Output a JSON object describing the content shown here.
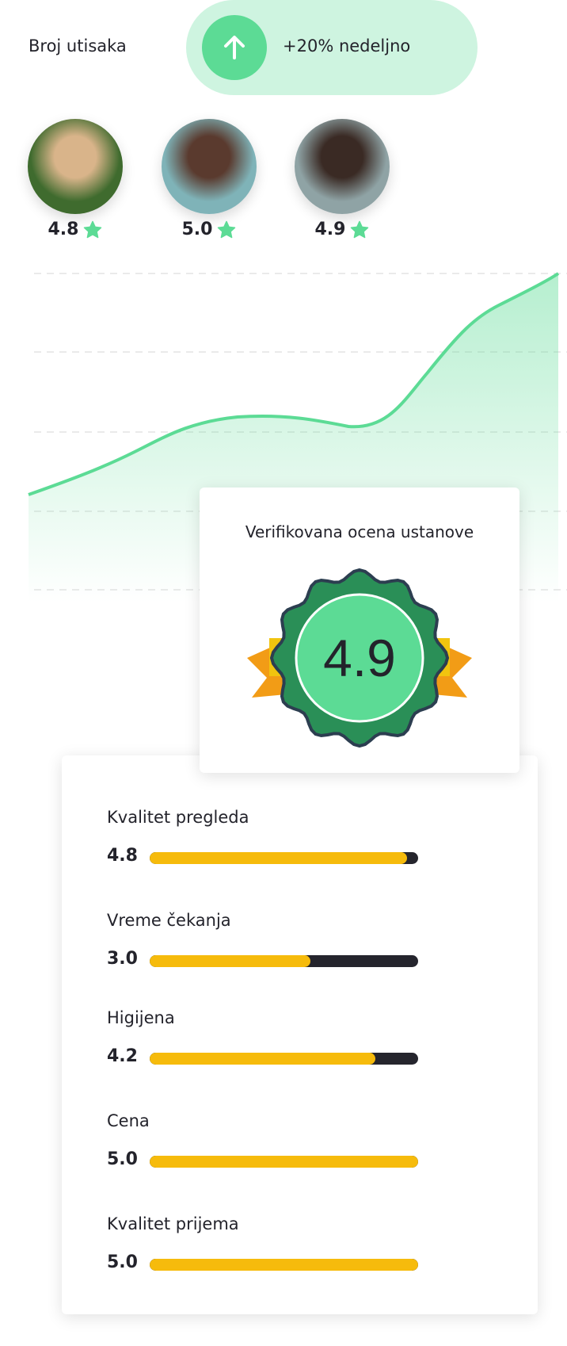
{
  "header": {
    "label": "Broj utisaka",
    "trend_text": "+20% nedeljno",
    "trend_icon": "arrow-up-icon"
  },
  "reviewers": [
    {
      "rating": "4.8",
      "icon": "star-icon",
      "photo_colors": [
        "#3f6b2e",
        "#d9b48a"
      ]
    },
    {
      "rating": "5.0",
      "icon": "star-icon",
      "photo_colors": [
        "#7fb3b8",
        "#5a3a2e"
      ]
    },
    {
      "rating": "4.9",
      "icon": "star-icon",
      "photo_colors": [
        "#8fa3a5",
        "#3a2a24"
      ]
    }
  ],
  "colors": {
    "accent": "#5cdb95",
    "accent_light": "#cef4e0",
    "bar_fill": "#f6bb0c",
    "bar_track": "#25252d",
    "badge_dark": "#2a8f57"
  },
  "chart_data": {
    "type": "area",
    "grid": true,
    "trend": "increasing"
  },
  "verified": {
    "title": "Verifikovana ocena ustanove",
    "score": "4.9"
  },
  "categories": [
    {
      "label": "Kvalitet pregleda",
      "value": "4.8",
      "score": 4.8
    },
    {
      "label": "Vreme čekanja",
      "value": "3.0",
      "score": 3.0
    },
    {
      "label": "Higijena",
      "value": "4.2",
      "score": 4.2
    },
    {
      "label": "Cena",
      "value": "5.0",
      "score": 5.0
    },
    {
      "label": "Kvalitet prijema",
      "value": "5.0",
      "score": 5.0
    }
  ],
  "max_score": 5
}
